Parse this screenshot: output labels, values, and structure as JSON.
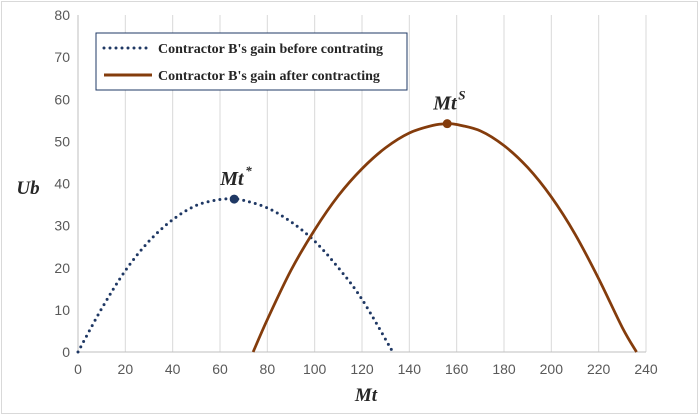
{
  "chart_data": {
    "type": "line",
    "xlabel": "Mt",
    "ylabel": "Ub",
    "xlim": [
      0,
      240
    ],
    "ylim": [
      0,
      80
    ],
    "x_ticks": [
      0,
      20,
      40,
      60,
      80,
      100,
      120,
      140,
      160,
      180,
      200,
      220,
      240
    ],
    "y_ticks": [
      0,
      10,
      20,
      30,
      40,
      50,
      60,
      70,
      80
    ],
    "grid": "vertical",
    "legend_position": "top-left",
    "series": [
      {
        "name": "Contractor B's gain before contrating",
        "style": "dotted",
        "color": "#1f3864",
        "x": [
          0,
          10,
          20,
          30,
          40,
          50,
          60,
          66,
          70,
          80,
          90,
          100,
          110,
          120,
          133
        ],
        "y": [
          0,
          10.3,
          19.3,
          26.3,
          31.4,
          34.8,
          36.2,
          36.3,
          36.0,
          34.2,
          30.9,
          26.3,
          20.0,
          12.5,
          0
        ]
      },
      {
        "name": "Contractor B's gain after contracting",
        "style": "solid",
        "color": "#843c0c",
        "x": [
          74,
          80,
          90,
          100,
          110,
          120,
          130,
          140,
          150,
          156,
          160,
          170,
          180,
          190,
          200,
          210,
          220,
          230,
          236
        ],
        "y": [
          0,
          7.7,
          19.4,
          29.0,
          37.1,
          43.5,
          48.5,
          52.0,
          53.8,
          54.2,
          54.0,
          52.5,
          49.0,
          43.8,
          36.8,
          28.0,
          17.4,
          5.8,
          0
        ]
      }
    ],
    "annotations": [
      {
        "label": "Mt",
        "sup": "*",
        "x": 66,
        "y": 36.3,
        "color": "#1f3864"
      },
      {
        "label": "Mt",
        "sup": "S",
        "x": 156,
        "y": 54.2,
        "color": "#843c0c"
      }
    ]
  }
}
